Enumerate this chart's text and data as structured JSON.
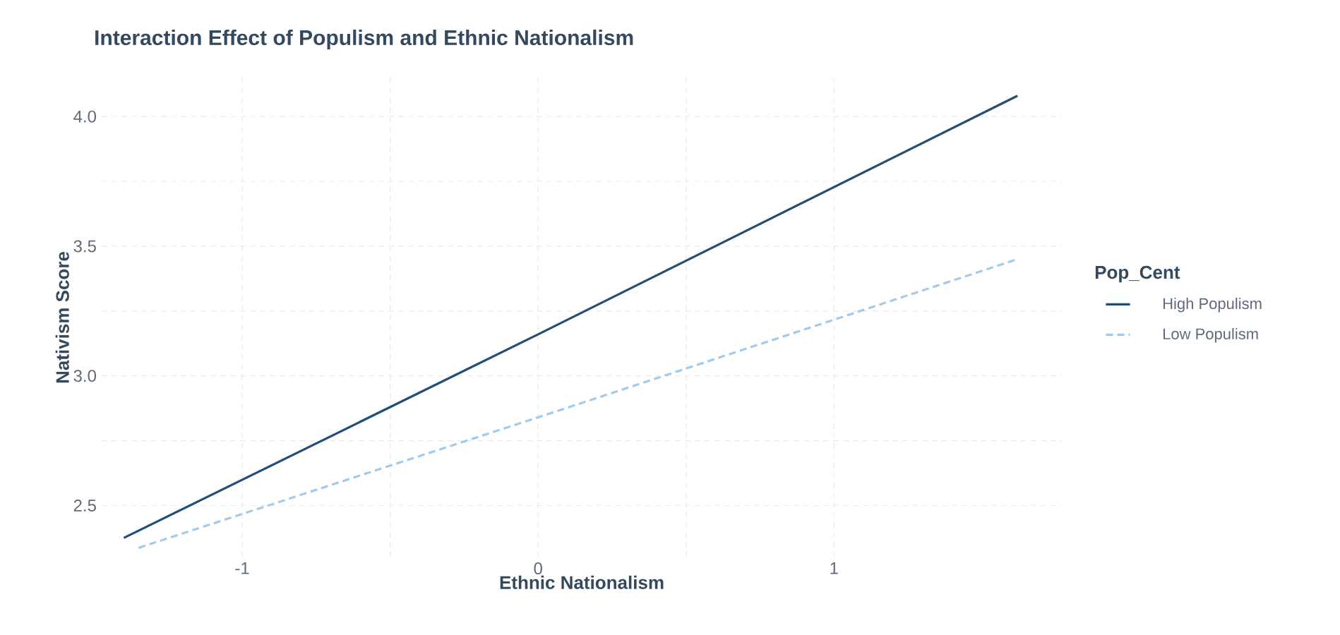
{
  "chart_data": {
    "type": "line",
    "title": "Interaction Effect of Populism and Ethnic Nationalism",
    "xlabel": "Ethnic Nationalism",
    "ylabel": "Nativism Score",
    "legend_title": "Pop_Cent",
    "legend": "right",
    "grid": true,
    "marker": "none",
    "xlim": [
      -1.475,
      1.77
    ],
    "ylim": [
      2.3,
      4.15
    ],
    "xticks": [
      -1,
      0,
      1
    ],
    "yticks": [
      2.5,
      {
        "value": 3,
        "label": "3.0"
      },
      3.5,
      {
        "value": 4,
        "label": "4.0"
      }
    ],
    "series": [
      {
        "name": "High Populism",
        "color": "#1f4e79",
        "line_style": "solid",
        "x": [
          -1.4,
          0,
          1.62
        ],
        "values": [
          2.375,
          3.16,
          4.08
        ]
      },
      {
        "name": "Low Populism",
        "color": "#9ecbf0",
        "line_style": "dashed",
        "x": [
          -1.35,
          0,
          1.62
        ],
        "values": [
          2.337,
          2.84,
          3.45
        ]
      }
    ]
  }
}
